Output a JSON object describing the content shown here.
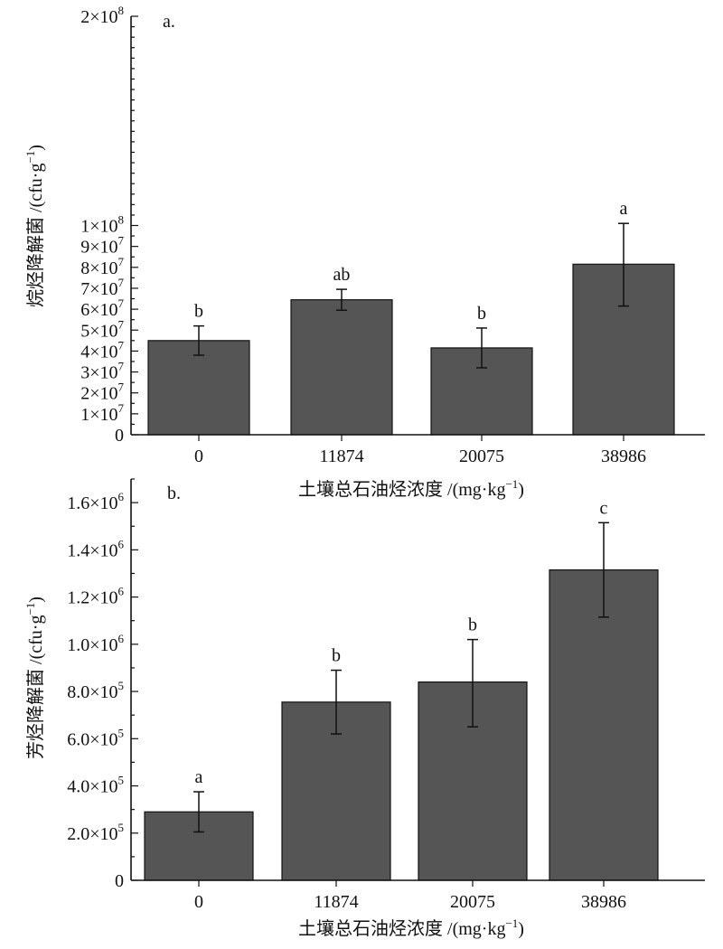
{
  "chart_data": [
    {
      "panel_label": "a.",
      "type": "bar",
      "categories": [
        "0",
        "11874",
        "20075",
        "38986"
      ],
      "values": [
        45000000,
        64500000,
        41500000,
        81500000
      ],
      "error_low": [
        38000000,
        59500000,
        32000000,
        61500000
      ],
      "error_high": [
        52000000,
        69500000,
        51000000,
        101000000
      ],
      "significance_letters": [
        "b",
        "ab",
        "b",
        "a"
      ],
      "ylabel_main": "烷烃降解菌 /(cfu·g",
      "ylabel_sup": "−1",
      "ylabel_tail": ")",
      "xlabel_main": "土壤总石油烃浓度 /(mg·kg",
      "xlabel_sup": "−1",
      "xlabel_tail": ")",
      "ylim": [
        0,
        200000000
      ],
      "yticks": [
        {
          "value": 0,
          "mant": "0",
          "exp": ""
        },
        {
          "value": 10000000,
          "mant": "1×10",
          "exp": "7"
        },
        {
          "value": 20000000,
          "mant": "2×10",
          "exp": "7"
        },
        {
          "value": 30000000,
          "mant": "3×10",
          "exp": "7"
        },
        {
          "value": 40000000,
          "mant": "4×10",
          "exp": "7"
        },
        {
          "value": 50000000,
          "mant": "5×10",
          "exp": "7"
        },
        {
          "value": 60000000,
          "mant": "6×10",
          "exp": "7"
        },
        {
          "value": 70000000,
          "mant": "7×10",
          "exp": "7"
        },
        {
          "value": 80000000,
          "mant": "8×10",
          "exp": "7"
        },
        {
          "value": 90000000,
          "mant": "9×10",
          "exp": "7"
        },
        {
          "value": 100000000,
          "mant": "1×10",
          "exp": "8"
        },
        {
          "value": 200000000,
          "mant": "2×10",
          "exp": "8"
        }
      ],
      "bar_color": "#555555"
    },
    {
      "panel_label": "b.",
      "type": "bar",
      "categories": [
        "0",
        "11874",
        "20075",
        "38986"
      ],
      "values": [
        290000,
        755000,
        840000,
        1315000
      ],
      "error_low": [
        205000,
        620000,
        650000,
        1115000
      ],
      "error_high": [
        375000,
        890000,
        1020000,
        1515000
      ],
      "significance_letters": [
        "a",
        "b",
        "b",
        "c"
      ],
      "ylabel_main": "芳烃降解菌 /(cfu·g",
      "ylabel_sup": "−1",
      "ylabel_tail": ")",
      "xlabel_main": "土壤总石油烃浓度 /(mg·kg",
      "xlabel_sup": "−1",
      "xlabel_tail": ")",
      "ylim": [
        0,
        1700000
      ],
      "yticks": [
        {
          "value": 0,
          "mant": "0",
          "exp": ""
        },
        {
          "value": 200000,
          "mant": "2.0×10",
          "exp": "5"
        },
        {
          "value": 400000,
          "mant": "4.0×10",
          "exp": "5"
        },
        {
          "value": 600000,
          "mant": "6.0×10",
          "exp": "5"
        },
        {
          "value": 800000,
          "mant": "8.0×10",
          "exp": "5"
        },
        {
          "value": 1000000,
          "mant": "1.0×10",
          "exp": "6"
        },
        {
          "value": 1200000,
          "mant": "1.2×10",
          "exp": "6"
        },
        {
          "value": 1400000,
          "mant": "1.4×10",
          "exp": "6"
        },
        {
          "value": 1600000,
          "mant": "1.6×10",
          "exp": "6"
        }
      ],
      "bar_color": "#555555"
    }
  ]
}
